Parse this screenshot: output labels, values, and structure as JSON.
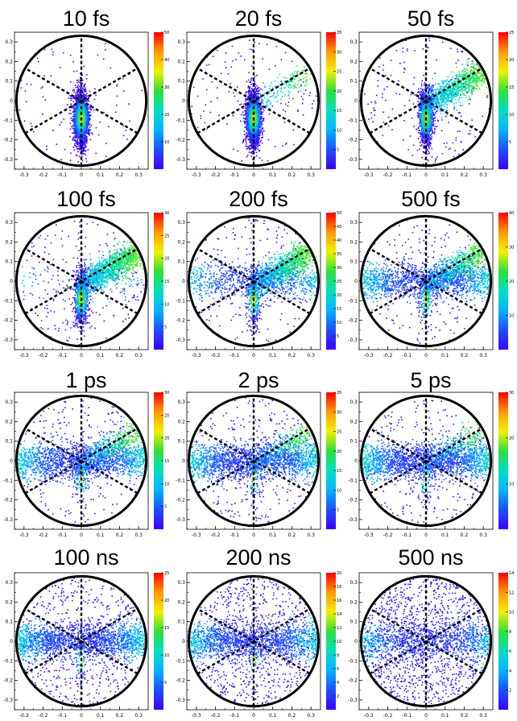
{
  "chart_data": {
    "type": "scatter",
    "subtype": "2d-histogram-grid",
    "x_ticks": [
      "-0.3",
      "-0.2",
      "-0.1",
      "0",
      "0.1",
      "0.2",
      "0.3"
    ],
    "y_ticks": [
      "0.3",
      "0.2",
      "0.1",
      "0",
      "-0.1",
      "-0.2",
      "-0.3"
    ],
    "xlim": [
      -0.35,
      0.35
    ],
    "ylim": [
      -0.35,
      0.35
    ],
    "circle_radius": 0.34,
    "guide_line_angles_deg": [
      90,
      30,
      150
    ],
    "colormap": [
      "#3b00ff",
      "#1f4fff",
      "#00b4ff",
      "#00e0c0",
      "#2ee03a",
      "#f2f000",
      "#ff9900",
      "#ff0000"
    ],
    "panels": [
      {
        "title": "10 fs",
        "zmax": 50,
        "zticks": [
          "10",
          "20",
          "30",
          "40",
          "50"
        ],
        "dist": {
          "jet": 0.95,
          "lobe": 0.0,
          "band": 0.0,
          "uniform": 0.06
        }
      },
      {
        "title": "20 fs",
        "zmax": 35,
        "zticks": [
          "5",
          "10",
          "15",
          "20",
          "25",
          "30",
          "35"
        ],
        "dist": {
          "jet": 0.85,
          "lobe": 0.08,
          "band": 0.0,
          "uniform": 0.07
        }
      },
      {
        "title": "50 fs",
        "zmax": 25,
        "zticks": [
          "5",
          "10",
          "15",
          "20",
          "25"
        ],
        "dist": {
          "jet": 0.5,
          "lobe": 0.4,
          "band": 0.0,
          "uniform": 0.1
        }
      },
      {
        "title": "100 fs",
        "zmax": 30,
        "zticks": [
          "5",
          "10",
          "15",
          "20",
          "25",
          "30"
        ],
        "dist": {
          "jet": 0.3,
          "lobe": 0.55,
          "band": 0.05,
          "uniform": 0.1
        }
      },
      {
        "title": "200 fs",
        "zmax": 50,
        "zticks": [
          "5",
          "10",
          "15",
          "20",
          "25",
          "30",
          "35",
          "40",
          "45",
          "50"
        ],
        "dist": {
          "jet": 0.15,
          "lobe": 0.45,
          "band": 0.3,
          "uniform": 0.1
        }
      },
      {
        "title": "500 fs",
        "zmax": 40,
        "zticks": [
          "10",
          "20",
          "30",
          "40"
        ],
        "dist": {
          "jet": 0.08,
          "lobe": 0.3,
          "band": 0.52,
          "uniform": 0.1
        }
      },
      {
        "title": "1 ps",
        "zmax": 30,
        "zticks": [
          "5",
          "10",
          "15",
          "20",
          "25",
          "30"
        ],
        "dist": {
          "jet": 0.06,
          "lobe": 0.2,
          "band": 0.62,
          "uniform": 0.12
        }
      },
      {
        "title": "2 ps",
        "zmax": 35,
        "zticks": [
          "5",
          "10",
          "15",
          "20",
          "25",
          "30",
          "35"
        ],
        "dist": {
          "jet": 0.04,
          "lobe": 0.14,
          "band": 0.68,
          "uniform": 0.14
        }
      },
      {
        "title": "5 ps",
        "zmax": 30,
        "zticks": [
          "10",
          "20",
          "30"
        ],
        "dist": {
          "jet": 0.03,
          "lobe": 0.12,
          "band": 0.7,
          "uniform": 0.15
        }
      },
      {
        "title": "100 ns",
        "zmax": 25,
        "zticks": [
          "5",
          "10",
          "15",
          "20",
          "25"
        ],
        "dist": {
          "jet": 0.02,
          "lobe": 0.0,
          "band": 0.7,
          "uniform": 0.28
        }
      },
      {
        "title": "200 ns",
        "zmax": 20,
        "zticks": [
          "2",
          "4",
          "6",
          "8",
          "10",
          "12",
          "14",
          "16",
          "18",
          "20"
        ],
        "dist": {
          "jet": 0.02,
          "lobe": 0.0,
          "band": 0.63,
          "uniform": 0.35
        }
      },
      {
        "title": "500 ns",
        "zmax": 14,
        "zticks": [
          "2",
          "4",
          "6",
          "8",
          "10",
          "12",
          "14"
        ],
        "dist": {
          "jet": 0.0,
          "lobe": 0.0,
          "band": 0.4,
          "uniform": 0.6
        }
      }
    ]
  }
}
